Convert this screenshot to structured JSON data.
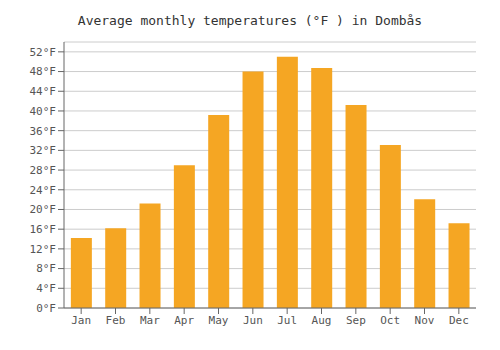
{
  "chart_data": {
    "type": "bar",
    "title": "Average monthly temperatures (°F ) in Dombås",
    "categories": [
      "Jan",
      "Feb",
      "Mar",
      "Apr",
      "May",
      "Jun",
      "Jul",
      "Aug",
      "Sep",
      "Oct",
      "Nov",
      "Dec"
    ],
    "values": [
      14.2,
      16.2,
      21.2,
      29.0,
      39.2,
      48.0,
      51.0,
      48.7,
      41.2,
      33.1,
      22.1,
      17.2
    ],
    "color": "#F5A623",
    "ylim": [
      0,
      54
    ],
    "yticks": [
      {
        "value": 0,
        "label": "0°F"
      },
      {
        "value": 4,
        "label": "4°F"
      },
      {
        "value": 8,
        "label": "8°F"
      },
      {
        "value": 12,
        "label": "12°F"
      },
      {
        "value": 16,
        "label": "16°F"
      },
      {
        "value": 20,
        "label": "20°F"
      },
      {
        "value": 24,
        "label": "24°F"
      },
      {
        "value": 28,
        "label": "28°F"
      },
      {
        "value": 32,
        "label": "32°F"
      },
      {
        "value": 36,
        "label": "36°F"
      },
      {
        "value": 40,
        "label": "40°F"
      },
      {
        "value": 44,
        "label": "44°F"
      },
      {
        "value": 48,
        "label": "48°F"
      },
      {
        "value": 52,
        "label": "52°F"
      }
    ],
    "grid": true
  }
}
